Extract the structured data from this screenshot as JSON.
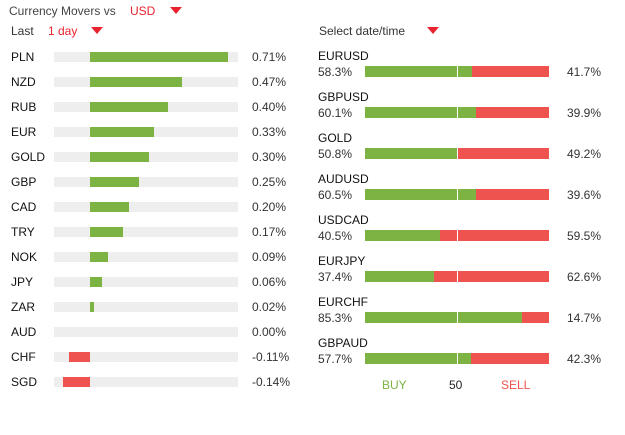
{
  "header": {
    "title": "Currency Movers vs",
    "base_currency": "USD",
    "period_label": "Last",
    "period_value": "1 day",
    "date_select_label": "Select date/time"
  },
  "colors": {
    "accent": "#e8232f",
    "positive": "#7cb342",
    "negative": "#ef5350",
    "track": "#eeeeee"
  },
  "movers": [
    {
      "code": "PLN",
      "value": "0.71%",
      "pct": 0.71
    },
    {
      "code": "NZD",
      "value": "0.47%",
      "pct": 0.47
    },
    {
      "code": "RUB",
      "value": "0.40%",
      "pct": 0.4
    },
    {
      "code": "EUR",
      "value": "0.33%",
      "pct": 0.33
    },
    {
      "code": "GOLD",
      "value": "0.30%",
      "pct": 0.3
    },
    {
      "code": "GBP",
      "value": "0.25%",
      "pct": 0.25
    },
    {
      "code": "CAD",
      "value": "0.20%",
      "pct": 0.2
    },
    {
      "code": "TRY",
      "value": "0.17%",
      "pct": 0.17
    },
    {
      "code": "NOK",
      "value": "0.09%",
      "pct": 0.09
    },
    {
      "code": "JPY",
      "value": "0.06%",
      "pct": 0.06
    },
    {
      "code": "ZAR",
      "value": "0.02%",
      "pct": 0.02
    },
    {
      "code": "AUD",
      "value": "0.00%",
      "pct": 0.0
    },
    {
      "code": "CHF",
      "value": "-0.11%",
      "pct": -0.11
    },
    {
      "code": "SGD",
      "value": "-0.14%",
      "pct": -0.14
    }
  ],
  "sentiment": [
    {
      "pair": "EURUSD",
      "buy": "58.3%",
      "sell": "41.7%",
      "buy_pct": 58.3
    },
    {
      "pair": "GBPUSD",
      "buy": "60.1%",
      "sell": "39.9%",
      "buy_pct": 60.1
    },
    {
      "pair": "GOLD",
      "buy": "50.8%",
      "sell": "49.2%",
      "buy_pct": 50.8
    },
    {
      "pair": "AUDUSD",
      "buy": "60.5%",
      "sell": "39.6%",
      "buy_pct": 60.5
    },
    {
      "pair": "USDCAD",
      "buy": "40.5%",
      "sell": "59.5%",
      "buy_pct": 40.5
    },
    {
      "pair": "EURJPY",
      "buy": "37.4%",
      "sell": "62.6%",
      "buy_pct": 37.4
    },
    {
      "pair": "EURCHF",
      "buy": "85.3%",
      "sell": "14.7%",
      "buy_pct": 85.3
    },
    {
      "pair": "GBPAUD",
      "buy": "57.7%",
      "sell": "42.3%",
      "buy_pct": 57.7
    }
  ],
  "legend": {
    "buy": "BUY",
    "mid": "50",
    "sell": "SELL"
  }
}
